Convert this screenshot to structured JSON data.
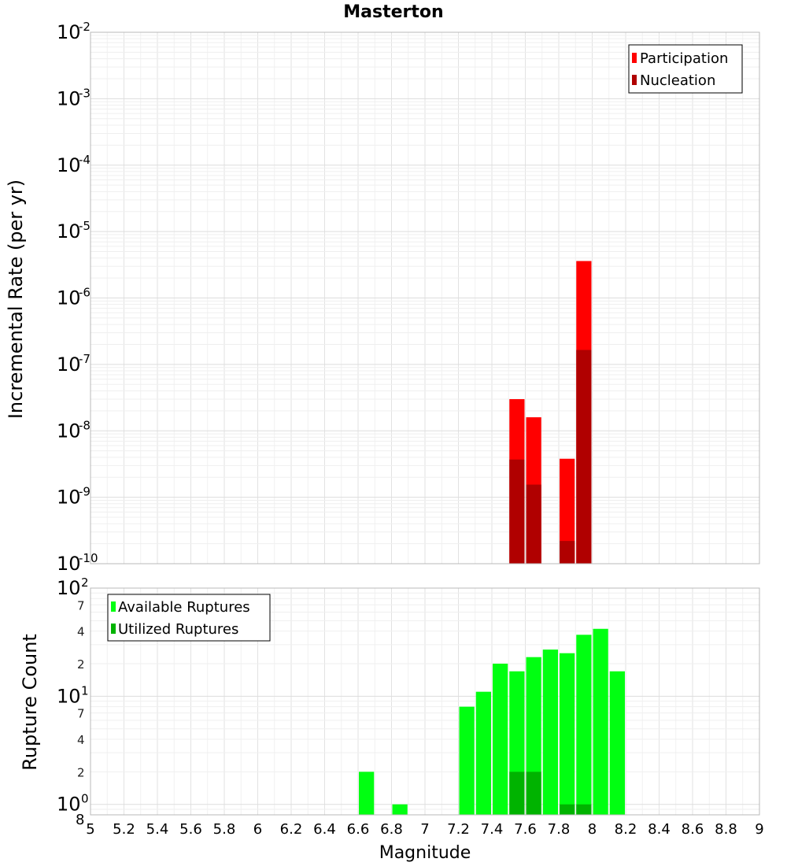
{
  "chart_data": {
    "title": "Masterton",
    "xlabel": "Magnitude",
    "xlim": [
      5,
      9
    ],
    "xticks": [
      "5",
      "5.2",
      "5.4",
      "5.6",
      "5.8",
      "6",
      "6.2",
      "6.4",
      "6.6",
      "6.8",
      "7",
      "7.2",
      "7.4",
      "7.6",
      "7.8",
      "8",
      "8.2",
      "8.4",
      "8.6",
      "8.8",
      "9"
    ],
    "panels": [
      {
        "type": "bar",
        "ylabel": "Incremental Rate (per yr)",
        "yscale": "log",
        "ylim": [
          1e-10,
          0.01
        ],
        "yticks": [
          {
            "base": "10",
            "exp": "-10"
          },
          {
            "base": "10",
            "exp": "-9"
          },
          {
            "base": "10",
            "exp": "-8"
          },
          {
            "base": "10",
            "exp": "-7"
          },
          {
            "base": "10",
            "exp": "-6"
          },
          {
            "base": "10",
            "exp": "-5"
          },
          {
            "base": "10",
            "exp": "-4"
          },
          {
            "base": "10",
            "exp": "-3"
          },
          {
            "base": "10",
            "exp": "-2"
          }
        ],
        "legend_position": "top-right",
        "bin_width": 0.1,
        "series": [
          {
            "name": "Participation",
            "color": "#ff0000",
            "x": [
              7.55,
              7.65,
              7.85,
              7.95
            ],
            "values": [
              3e-08,
              1.6e-08,
              3.8e-09,
              3.6e-06
            ]
          },
          {
            "name": "Nucleation",
            "color": "#b00000",
            "x": [
              7.55,
              7.65,
              7.85,
              7.95
            ],
            "values": [
              3.7e-09,
              1.55e-09,
              2.2e-10,
              1.65e-07
            ]
          }
        ]
      },
      {
        "type": "bar",
        "ylabel": "Rupture Count",
        "yscale": "log",
        "ylim": [
          0.8,
          100
        ],
        "yticks": [
          {
            "label": "10",
            "sup": "0",
            "value": 1
          },
          {
            "label": "10",
            "sup": "1",
            "value": 10
          },
          {
            "label": "10",
            "sup": "2",
            "value": 100
          }
        ],
        "minor_tick_labels": [
          {
            "label": "8",
            "value": 0.8
          },
          {
            "label": "2",
            "value": 2
          },
          {
            "label": "4",
            "value": 4
          },
          {
            "label": "7",
            "value": 7
          },
          {
            "label": "2",
            "value": 20
          },
          {
            "label": "4",
            "value": 40
          },
          {
            "label": "7",
            "value": 70
          }
        ],
        "legend_position": "top-left",
        "bin_width": 0.1,
        "series": [
          {
            "name": "Available Ruptures",
            "color": "#00ff11",
            "x": [
              6.65,
              6.85,
              7.25,
              7.35,
              7.45,
              7.55,
              7.65,
              7.75,
              7.85,
              7.95,
              8.05,
              8.15
            ],
            "values": [
              2,
              1,
              8,
              11,
              20,
              17,
              23,
              27,
              25,
              37,
              42,
              17
            ]
          },
          {
            "name": "Utilized Ruptures",
            "color": "#00b300",
            "x": [
              7.55,
              7.65,
              7.85,
              7.95
            ],
            "values": [
              2,
              2,
              1,
              1
            ]
          }
        ]
      }
    ]
  }
}
